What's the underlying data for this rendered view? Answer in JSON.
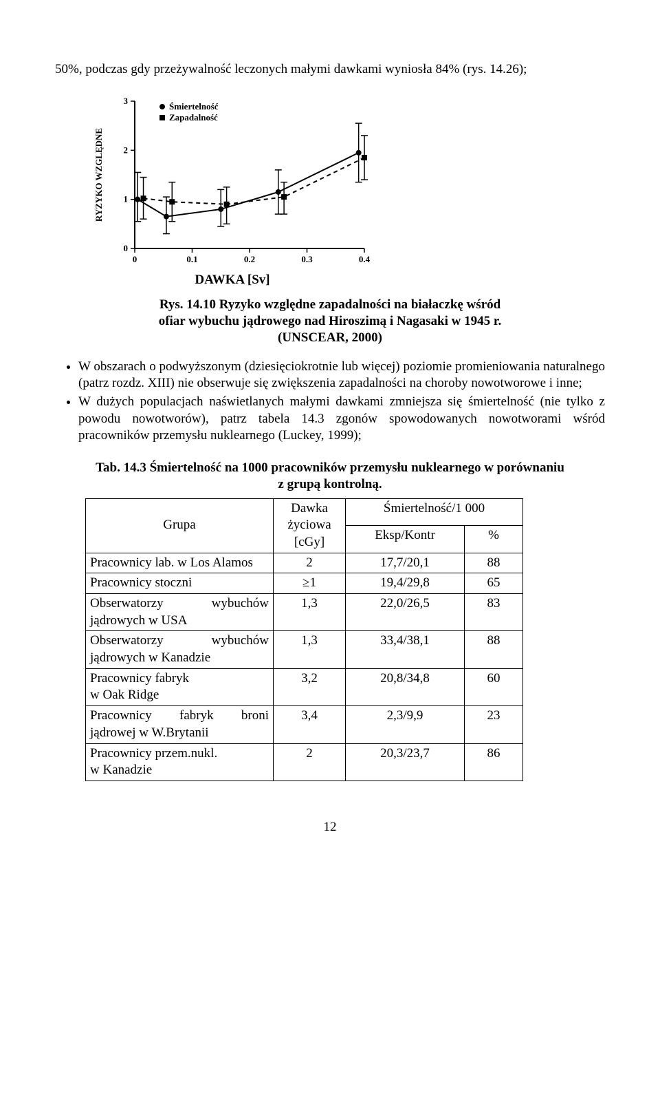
{
  "intro_text": "50%, podczas gdy przeżywalność leczonych małymi dawkami wyniosła 84% (rys. 14.26);",
  "chart": {
    "type": "line",
    "y_axis_label": "RYZYKO WZGLĘDNE",
    "x_axis_label": "DAWKA [Sv]",
    "legend": [
      "Śmiertelność",
      "Zapadalność"
    ],
    "x_ticks": [
      "0",
      "0.1",
      "0.2",
      "0.3",
      "0.4"
    ],
    "y_ticks": [
      "0",
      "1",
      "2",
      "3"
    ],
    "ylim": [
      0,
      3
    ],
    "xlim": [
      0,
      0.4
    ],
    "series1": {
      "name": "Śmiertelność",
      "marker": "circle",
      "dash": "solid",
      "points": [
        {
          "x": 0.005,
          "y": 1.0,
          "lo": 0.55,
          "hi": 1.55
        },
        {
          "x": 0.055,
          "y": 0.65,
          "lo": 0.3,
          "hi": 1.05
        },
        {
          "x": 0.15,
          "y": 0.8,
          "lo": 0.45,
          "hi": 1.2
        },
        {
          "x": 0.25,
          "y": 1.15,
          "lo": 0.7,
          "hi": 1.6
        },
        {
          "x": 0.39,
          "y": 1.95,
          "lo": 1.35,
          "hi": 2.55
        }
      ]
    },
    "series2": {
      "name": "Zapadalność",
      "marker": "square",
      "dash": "dashed",
      "points": [
        {
          "x": 0.015,
          "y": 1.02,
          "lo": 0.6,
          "hi": 1.45
        },
        {
          "x": 0.065,
          "y": 0.95,
          "lo": 0.55,
          "hi": 1.35
        },
        {
          "x": 0.16,
          "y": 0.9,
          "lo": 0.5,
          "hi": 1.25
        },
        {
          "x": 0.26,
          "y": 1.05,
          "lo": 0.7,
          "hi": 1.35
        },
        {
          "x": 0.4,
          "y": 1.85,
          "lo": 1.4,
          "hi": 2.3
        }
      ]
    },
    "axis_color": "#000000",
    "line_color": "#000000",
    "background": "#ffffff",
    "font_size_axis": 13,
    "font_size_label": 13
  },
  "fig_caption_line1": "Rys. 14.10 Ryzyko względne zapadalności na białaczkę wśród",
  "fig_caption_line2": "ofiar wybuchu jądrowego nad Hiroszimą i Nagasaki w 1945 r.",
  "fig_caption_line3": "(UNSCEAR, 2000)",
  "bullet1": "W obszarach o podwyższonym (dziesięciokrotnie lub więcej) poziomie promieniowania naturalnego (patrz rozdz. XIII) nie obserwuje się zwiększenia zapadalności na choroby nowotworowe i inne;",
  "bullet2": "W dużych populacjach naświetlanych małymi dawkami zmniejsza się śmiertelność (nie tylko z powodu nowotworów), patrz tabela 14.3 zgonów spowodowanych nowotworami wśród pracowników przemysłu nuklearnego (Luckey, 1999);",
  "tab_caption_line1": "Tab. 14.3 Śmiertelność na 1000 pracowników przemysłu nuklearnego w porównaniu",
  "tab_caption_line2": "z grupą kontrolną.",
  "table": {
    "header": {
      "grupa": "Grupa",
      "dawka_l1": "Dawka",
      "dawka_l2": "życiowa",
      "dawka_l3": "[cGy]",
      "smier": "Śmiertelność/1 000",
      "eksp": "Eksp/Kontr",
      "pct": "%"
    },
    "rows": [
      {
        "grupa": "Pracownicy lab. w Los Alamos",
        "dawka": "2",
        "eksp": "17,7/20,1",
        "pct": "88",
        "justify": false
      },
      {
        "grupa": "Pracownicy stoczni",
        "dawka": "≥1",
        "eksp": "19,4/29,8",
        "pct": "65",
        "justify": false
      },
      {
        "grupa_left": "Obserwatorzy",
        "grupa_right": "wybuchów",
        "grupa_l2": "jądrowych w USA",
        "dawka": "1,3",
        "eksp": "22,0/26,5",
        "pct": "83",
        "justify": true
      },
      {
        "grupa_left": "Obserwatorzy",
        "grupa_right": "wybuchów",
        "grupa_l2": "jądrowych w Kanadzie",
        "dawka": "1,3",
        "eksp": "33,4/38,1",
        "pct": "88",
        "justify": true
      },
      {
        "grupa": "Pracownicy fabryk",
        "grupa_l2": "w Oak Ridge",
        "dawka": "3,2",
        "eksp": "20,8/34,8",
        "pct": "60",
        "justify": false
      },
      {
        "grupa3_a": "Pracownicy",
        "grupa3_b": "fabryk",
        "grupa3_c": "broni",
        "grupa_l2": "jądrowej w W.Brytanii",
        "dawka": "3,4",
        "eksp": "2,3/9,9",
        "pct": "23",
        "justify3": true
      },
      {
        "grupa": "Pracownicy przem.nukl.",
        "grupa_l2": "w Kanadzie",
        "dawka": "2",
        "eksp": "20,3/23,7",
        "pct": "86",
        "justify": false
      }
    ]
  },
  "page_number": "12"
}
